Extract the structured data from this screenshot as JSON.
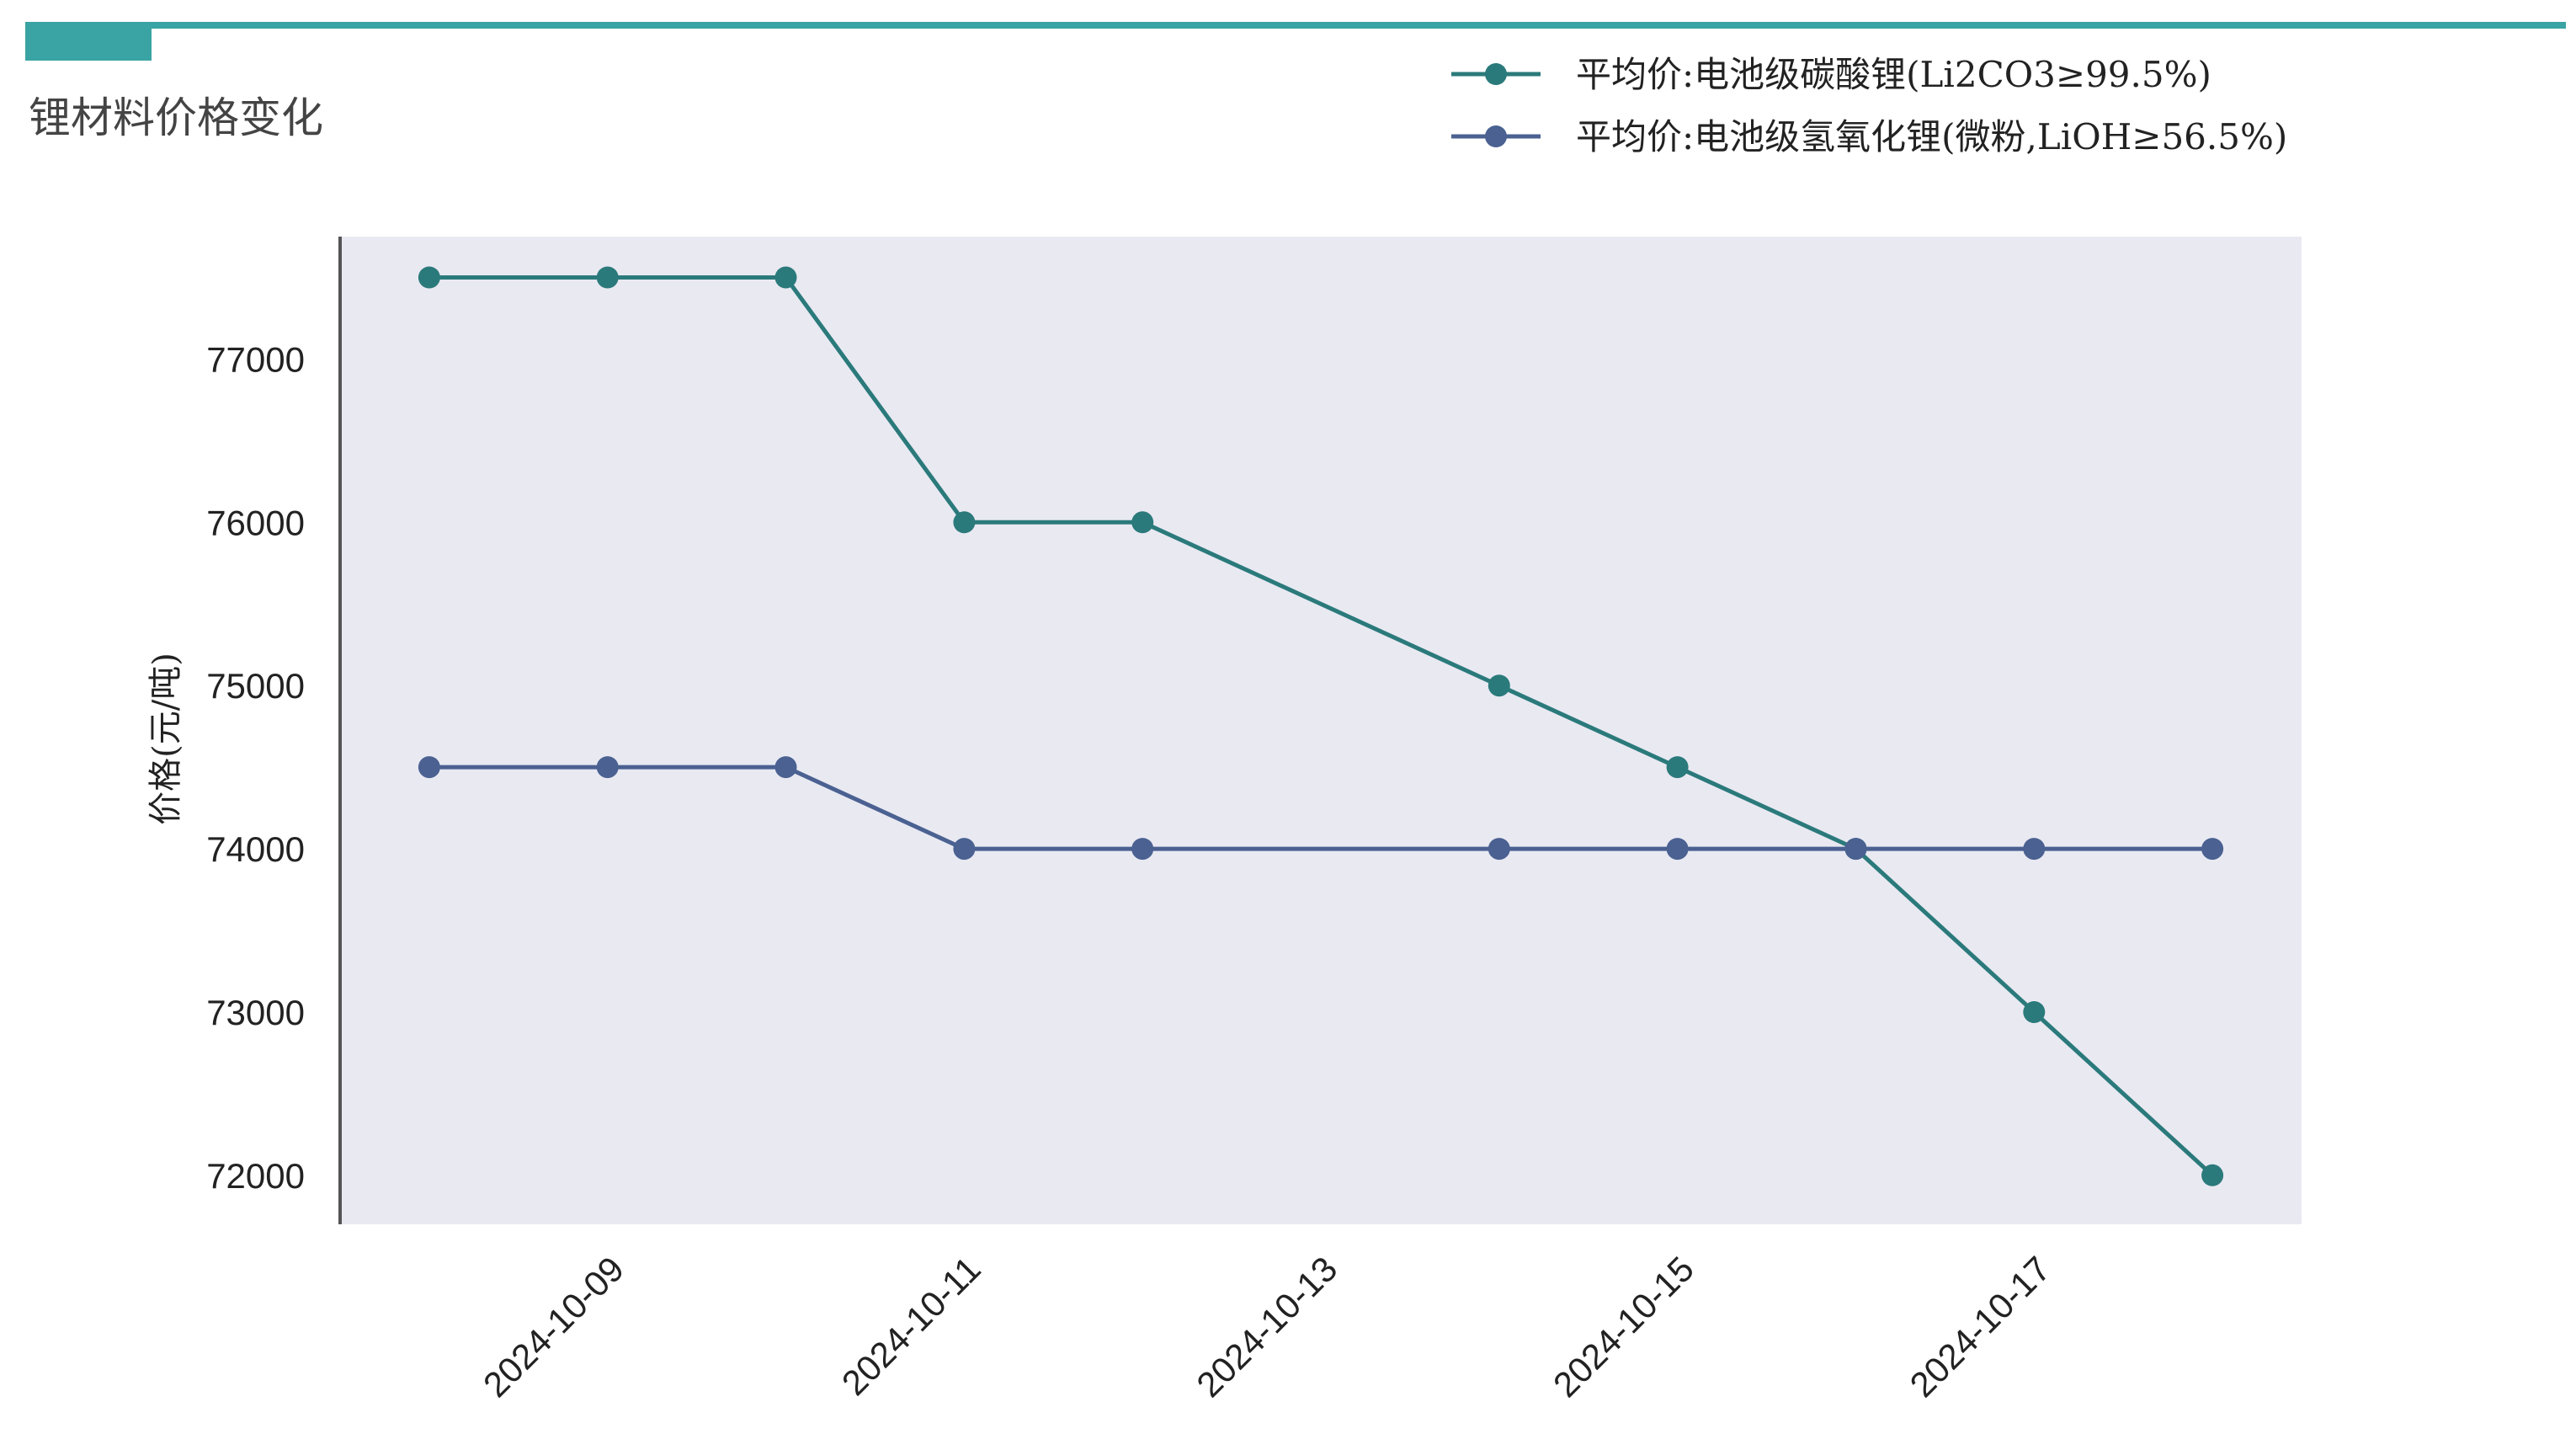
{
  "page": {
    "title": "锂材料价格变化",
    "accent": "#3aa3a3"
  },
  "chart_data": {
    "type": "line",
    "title": "",
    "xlabel": "",
    "ylabel": "价格(元/吨)",
    "x": [
      "2024-10-08",
      "2024-10-09",
      "2024-10-10",
      "2024-10-11",
      "2024-10-12",
      "2024-10-14",
      "2024-10-15",
      "2024-10-16",
      "2024-10-17",
      "2024-10-18"
    ],
    "x_ticks": [
      "2024-10-09",
      "2024-10-11",
      "2024-10-13",
      "2024-10-15",
      "2024-10-17"
    ],
    "y_ticks": [
      72000,
      73000,
      74000,
      75000,
      76000,
      77000
    ],
    "ylim": [
      71700,
      77750
    ],
    "xlim": [
      "2024-10-07T12:00",
      "2024-10-18T12:00"
    ],
    "grid": false,
    "legend_position": "top-right",
    "background": "#e9e9f2",
    "series": [
      {
        "name": "平均价:电池级碳酸锂(Li2CO3≥99.5%)",
        "color": "#2b7a7b",
        "values": [
          77500,
          77500,
          77500,
          76000,
          76000,
          75000,
          74500,
          74000,
          73000,
          72000
        ]
      },
      {
        "name": "平均价:电池级氢氧化锂(微粉,LiOH≥56.5%)",
        "color": "#4a6191",
        "values": [
          74500,
          74500,
          74500,
          74000,
          74000,
          74000,
          74000,
          74000,
          74000,
          74000
        ]
      }
    ]
  }
}
